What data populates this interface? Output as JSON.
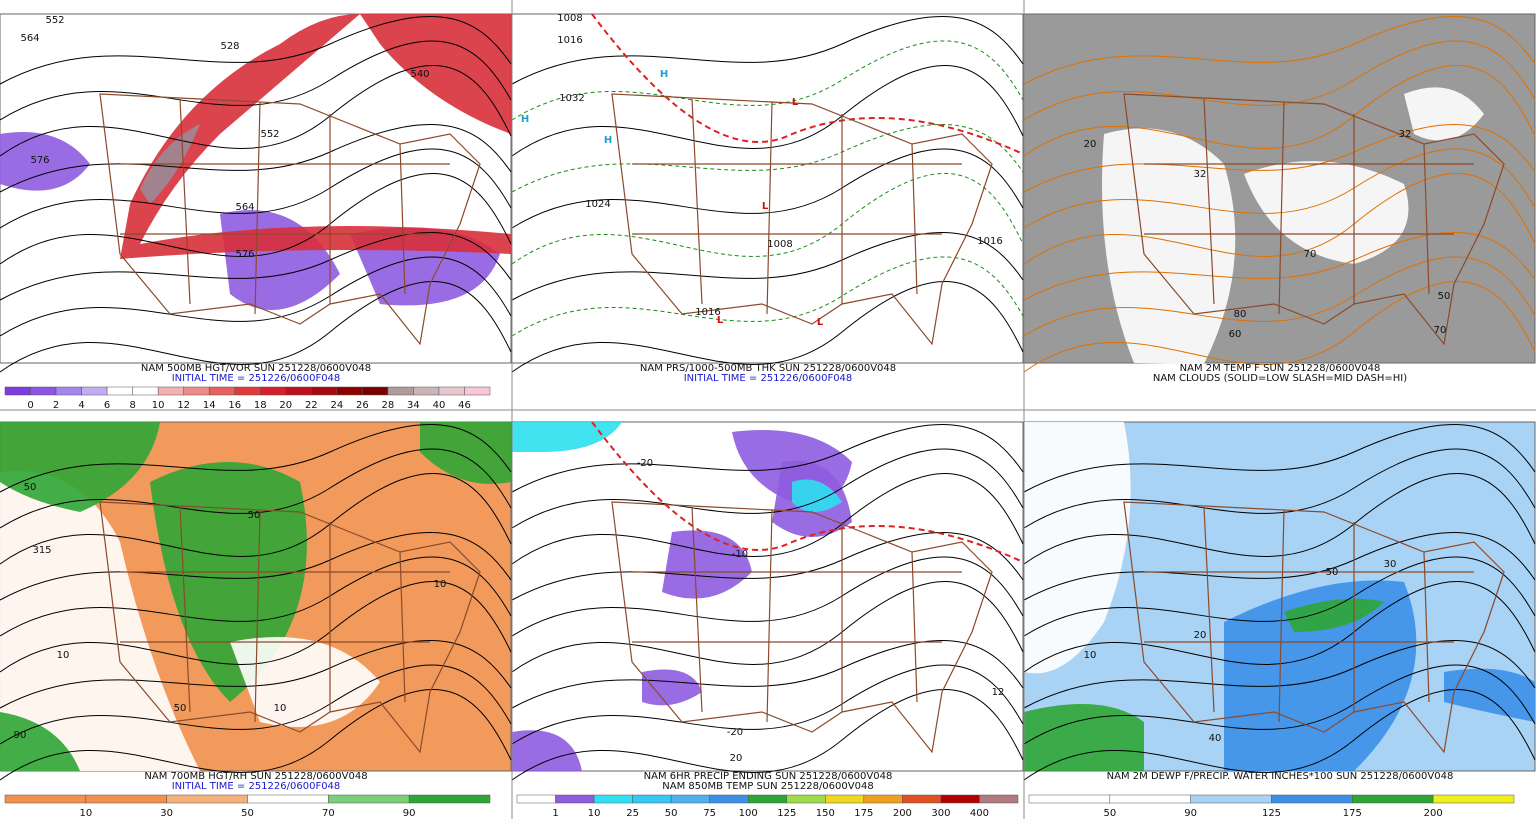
{
  "panels": [
    {
      "captions": [
        "NAM 500MB HGT/VOR SUN 251228/0600V048",
        "INITIAL TIME = 251226/0600F048"
      ],
      "colorbar": [
        "0",
        "2",
        "4",
        "6",
        "8",
        "10",
        "12",
        "14",
        "16",
        "18",
        "20",
        "22",
        "24",
        "26",
        "28",
        "34",
        "40",
        "46"
      ],
      "map_labels": [
        "552",
        "564",
        "528",
        "576",
        "552",
        "564",
        "576",
        "540"
      ]
    },
    {
      "captions": [
        "NAM PRS/1000-500MB THK SUN 251228/0600V048",
        "INITIAL TIME = 251226/0600F048"
      ],
      "map_labels": [
        "1008",
        "1016",
        "1032",
        "1024",
        "1008",
        "1016",
        "1016",
        "H",
        "H",
        "H",
        "L",
        "L",
        "L",
        "L",
        "L"
      ]
    },
    {
      "captions": [
        "NAM 2M TEMP F SUN 251228/0600V048",
        "NAM CLOUDS (SOLID=LOW SLASH=MID DASH=HI)"
      ],
      "map_labels": [
        "32",
        "20",
        "32",
        "70",
        "50",
        "60",
        "80",
        "70"
      ]
    },
    {
      "captions": [
        "NAM 700MB HGT/RH SUN 251228/0600V048",
        "INITIAL TIME = 251226/0600F048"
      ],
      "colorbar": [
        "10",
        "30",
        "50",
        "70",
        "90"
      ],
      "map_labels": [
        "50",
        "315",
        "10",
        "10",
        "50",
        "90",
        "10",
        "50"
      ]
    },
    {
      "captions": [
        "NAM 6HR PRECIP ENDING SUN 251228/0600V048",
        "NAM 850MB TEMP SUN 251228/0600V048"
      ],
      "colorbar": [
        "1",
        "10",
        "25",
        "50",
        "75",
        "100",
        "125",
        "150",
        "175",
        "200",
        "300",
        "400"
      ],
      "map_labels": [
        "-20",
        "-10",
        "-20",
        "20",
        "12"
      ]
    },
    {
      "captions": [
        "NAM 2M DEWP F/PRECIP. WATER INCHES*100 SUN 251228/0600V048"
      ],
      "colorbar": [
        "50",
        "90",
        "125",
        "175",
        "200"
      ],
      "map_labels": [
        "30",
        "50",
        "10",
        "20",
        "40"
      ]
    }
  ]
}
